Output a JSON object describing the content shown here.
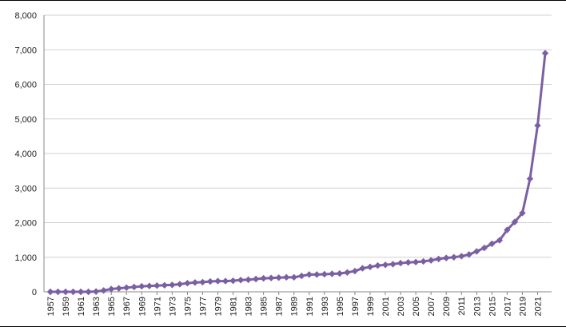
{
  "chart_data": {
    "type": "line",
    "title": "",
    "xlabel": "",
    "ylabel": "",
    "ylim": [
      0,
      8000
    ],
    "yticks": [
      0,
      1000,
      2000,
      3000,
      4000,
      5000,
      6000,
      7000,
      8000
    ],
    "ytick_labels": [
      "0",
      "1,000",
      "2,000",
      "3,000",
      "4,000",
      "5,000",
      "6,000",
      "7,000",
      "8,000"
    ],
    "xtick_labels": [
      "1957",
      "1959",
      "1961",
      "1963",
      "1965",
      "1967",
      "1969",
      "1971",
      "1973",
      "1975",
      "1977",
      "1979",
      "1981",
      "1983",
      "1985",
      "1987",
      "1989",
      "1991",
      "1993",
      "1995",
      "1997",
      "1999",
      "2001",
      "2003",
      "2005",
      "2007",
      "2009",
      "2011",
      "2013",
      "2015",
      "2017",
      "2019",
      "2021"
    ],
    "grid": true,
    "legend": "none",
    "series_color": "#7b5fa3",
    "marker": "diamond",
    "x": [
      1957,
      1958,
      1959,
      1960,
      1961,
      1962,
      1963,
      1964,
      1965,
      1966,
      1967,
      1968,
      1969,
      1970,
      1971,
      1972,
      1973,
      1974,
      1975,
      1976,
      1977,
      1978,
      1979,
      1980,
      1981,
      1982,
      1983,
      1984,
      1985,
      1986,
      1987,
      1988,
      1989,
      1990,
      1991,
      1992,
      1993,
      1994,
      1995,
      1996,
      1997,
      1998,
      1999,
      2000,
      2001,
      2002,
      2003,
      2004,
      2005,
      2006,
      2007,
      2008,
      2009,
      2010,
      2011,
      2012,
      2013,
      2014,
      2015,
      2016,
      2017,
      2018,
      2019,
      2020,
      2021,
      2022
    ],
    "values": [
      0,
      0,
      0,
      0,
      0,
      0,
      10,
      40,
      80,
      100,
      120,
      140,
      160,
      170,
      180,
      190,
      200,
      220,
      250,
      270,
      280,
      300,
      310,
      310,
      320,
      340,
      350,
      370,
      390,
      400,
      410,
      420,
      420,
      460,
      500,
      500,
      510,
      520,
      530,
      560,
      600,
      680,
      720,
      760,
      780,
      800,
      830,
      850,
      860,
      880,
      910,
      950,
      980,
      1000,
      1030,
      1080,
      1170,
      1270,
      1390,
      1490,
      1790,
      2020,
      2280,
      3270,
      4810,
      6900
    ]
  }
}
